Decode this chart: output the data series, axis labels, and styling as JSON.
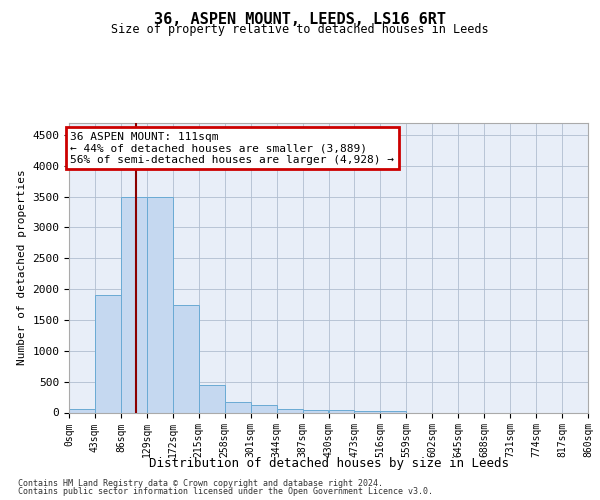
{
  "title": "36, ASPEN MOUNT, LEEDS, LS16 6RT",
  "subtitle": "Size of property relative to detached houses in Leeds",
  "xlabel": "Distribution of detached houses by size in Leeds",
  "ylabel": "Number of detached properties",
  "bar_color": "#c5d8f0",
  "bar_edge_color": "#6aaad4",
  "background_color": "#ffffff",
  "plot_bg_color": "#e8eef8",
  "grid_color": "#b0bdd0",
  "bins": [
    0,
    43,
    86,
    129,
    172,
    215,
    258,
    301,
    344,
    387,
    430,
    473,
    516,
    559,
    602,
    645,
    688,
    731,
    774,
    817,
    860
  ],
  "bin_labels": [
    "0sqm",
    "43sqm",
    "86sqm",
    "129sqm",
    "172sqm",
    "215sqm",
    "258sqm",
    "301sqm",
    "344sqm",
    "387sqm",
    "430sqm",
    "473sqm",
    "516sqm",
    "559sqm",
    "602sqm",
    "645sqm",
    "688sqm",
    "731sqm",
    "774sqm",
    "817sqm",
    "860sqm"
  ],
  "values": [
    55,
    1900,
    3500,
    3500,
    1750,
    450,
    175,
    125,
    50,
    45,
    35,
    30,
    25,
    0,
    0,
    0,
    0,
    0,
    0,
    0
  ],
  "property_sqm": 111,
  "property_label": "36 ASPEN MOUNT: 111sqm",
  "pct_smaller": 44,
  "pct_smaller_count": 3889,
  "pct_larger_label": "56% of semi-detached houses are larger (4,928)",
  "vline_color": "#8b0000",
  "annotation_box_color": "#cc0000",
  "ylim": [
    0,
    4700
  ],
  "yticks": [
    0,
    500,
    1000,
    1500,
    2000,
    2500,
    3000,
    3500,
    4000,
    4500
  ],
  "footnote1": "Contains HM Land Registry data © Crown copyright and database right 2024.",
  "footnote2": "Contains public sector information licensed under the Open Government Licence v3.0."
}
